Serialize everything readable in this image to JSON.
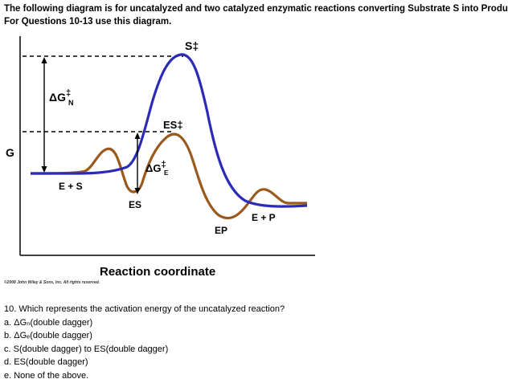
{
  "intro": {
    "line1": "The following diagram is for uncatalyzed and two catalyzed enzymatic reactions converting Substrate S into Product P.",
    "line2": "For Questions 10-13 use this diagram."
  },
  "diagram": {
    "y_axis_label": "G",
    "x_axis_label": "Reaction coordinate",
    "labels": {
      "s_dagger": "S‡",
      "es_dagger": "ES‡",
      "dg_n_base": "ΔG",
      "dg_n_sup": "‡",
      "dg_n_sub": "N",
      "dg_e_base": "ΔG",
      "dg_e_sup": "‡",
      "dg_e_sub": "E",
      "e_plus_s": "E + S",
      "es": "ES",
      "ep": "EP",
      "e_plus_p": "E + P"
    },
    "colors": {
      "uncatalyzed": "#2b2bb8",
      "catalyzed": "#9a5a1e",
      "axes": "#000000"
    }
  },
  "copyright": "©2008 John Wiley & Sons, Inc. All rights reserved.",
  "question": {
    "text": "10. Which represents the activation energy of the uncatalyzed reaction?",
    "options": [
      "a. ΔGₙ(double dagger)",
      "b. ΔGₑ(double dagger)",
      "c. S(double dagger) to ES(double dagger)",
      "d. ES(double dagger)",
      "e. None of the above."
    ]
  }
}
